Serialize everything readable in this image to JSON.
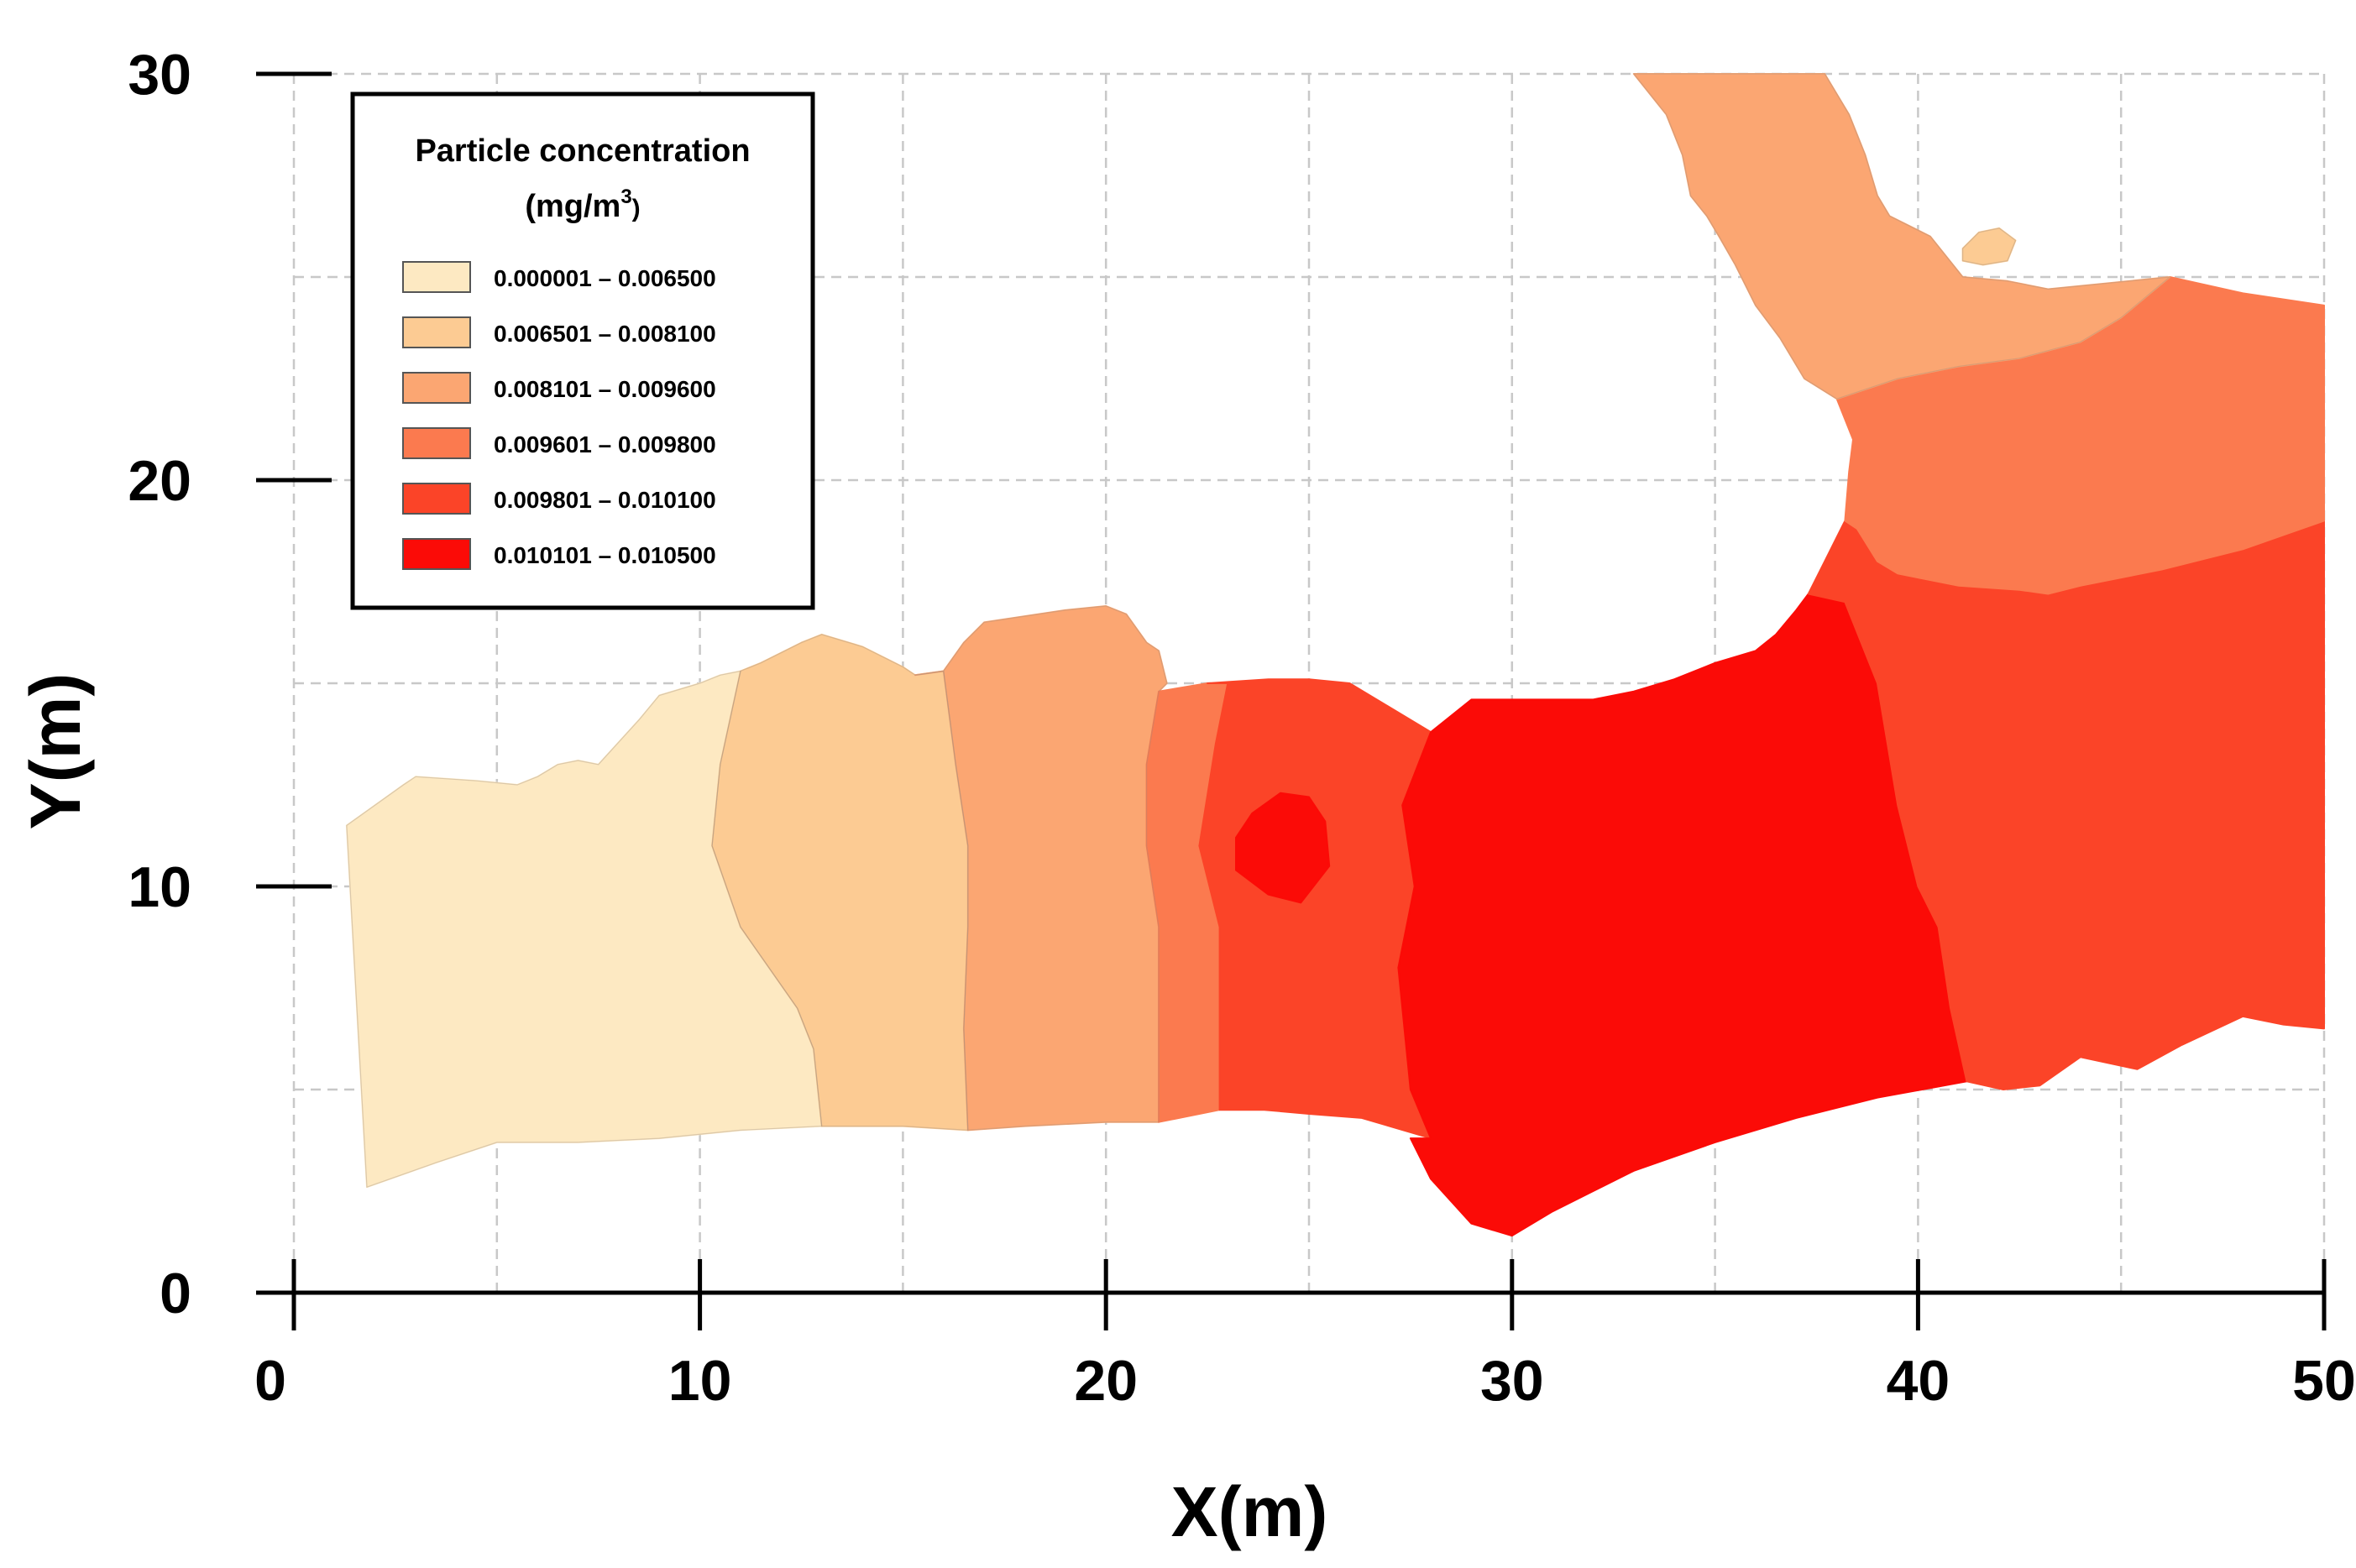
{
  "chart_data": {
    "type": "heatmap",
    "subtype": "filled-contour-map",
    "title": "",
    "xlabel": "X(m)",
    "ylabel": "Y(m)",
    "xlim": [
      0,
      50
    ],
    "ylim": [
      0,
      30
    ],
    "x_ticks": [
      0,
      10,
      20,
      30,
      40,
      50
    ],
    "y_ticks": [
      0,
      10,
      20,
      30
    ],
    "grid": true,
    "grid_step": 5,
    "legend": {
      "placement": "top-left",
      "title_line1": "Particle concentration",
      "title_unit": "(mg/m",
      "title_sup": "3",
      "title_close": ")",
      "entries": [
        {
          "label": "0.000001 – 0.006500",
          "color": "#fde9c2"
        },
        {
          "label": "0.006501 – 0.008100",
          "color": "#fccb93"
        },
        {
          "label": "0.008101 – 0.009600",
          "color": "#fba672"
        },
        {
          "label": "0.009601 – 0.009800",
          "color": "#fb7a4f"
        },
        {
          "label": "0.009801 – 0.010100",
          "color": "#fb4428"
        },
        {
          "label": "0.010101 – 0.010500",
          "color": "#fb0b07"
        }
      ]
    },
    "regions": [
      {
        "class": 0,
        "polygon": [
          [
            1.3,
            11.5
          ],
          [
            2.7,
            12.5
          ],
          [
            3,
            12.7
          ],
          [
            4.5,
            12.6
          ],
          [
            5.5,
            12.5
          ],
          [
            6,
            12.7
          ],
          [
            6.5,
            13
          ],
          [
            7,
            13.1
          ],
          [
            7.5,
            13
          ],
          [
            8.5,
            14.1
          ],
          [
            9,
            14.7
          ],
          [
            10,
            15
          ],
          [
            10.5,
            15.2
          ],
          [
            11,
            15.3
          ],
          [
            10.5,
            13
          ],
          [
            10.3,
            11
          ],
          [
            11,
            9
          ],
          [
            12.4,
            7
          ],
          [
            12.8,
            6
          ],
          [
            13,
            4.1
          ],
          [
            11,
            4
          ],
          [
            9,
            3.8
          ],
          [
            7,
            3.7
          ],
          [
            5,
            3.7
          ],
          [
            3.5,
            3.2
          ],
          [
            1.8,
            2.6
          ]
        ]
      },
      {
        "class": 1,
        "polygon": [
          [
            11,
            15.3
          ],
          [
            11.5,
            15.5
          ],
          [
            12.5,
            16
          ],
          [
            13,
            16.2
          ],
          [
            14,
            15.9
          ],
          [
            15,
            15.4
          ],
          [
            15.3,
            15.2
          ],
          [
            16,
            15.3
          ],
          [
            16.3,
            13
          ],
          [
            16.6,
            11
          ],
          [
            16.6,
            9
          ],
          [
            16.5,
            6.5
          ],
          [
            16.6,
            4
          ],
          [
            15,
            4.1
          ],
          [
            13,
            4.1
          ],
          [
            12.8,
            6
          ],
          [
            12.4,
            7
          ],
          [
            11,
            9
          ],
          [
            10.3,
            11
          ],
          [
            10.5,
            13
          ]
        ]
      },
      {
        "class": 2,
        "polygon": [
          [
            15.3,
            15.2
          ],
          [
            16,
            15.3
          ],
          [
            16.5,
            16
          ],
          [
            17,
            16.5
          ],
          [
            19,
            16.8
          ],
          [
            20,
            16.9
          ],
          [
            20.5,
            16.7
          ],
          [
            21,
            16
          ],
          [
            21.3,
            15.8
          ],
          [
            21.5,
            15
          ],
          [
            21.3,
            14.8
          ],
          [
            21,
            13
          ],
          [
            21,
            11
          ],
          [
            21.3,
            9
          ],
          [
            21.3,
            6.5
          ],
          [
            21.3,
            4.2
          ],
          [
            20,
            4.2
          ],
          [
            18,
            4.1
          ],
          [
            16.6,
            4
          ],
          [
            16.5,
            6.5
          ],
          [
            16.6,
            9
          ],
          [
            16.6,
            11
          ],
          [
            16.3,
            13
          ],
          [
            16,
            15.3
          ]
        ]
      },
      {
        "class": 3,
        "polygon": [
          [
            21.3,
            14.8
          ],
          [
            22.5,
            15
          ],
          [
            23,
            15
          ],
          [
            22.7,
            13.5
          ],
          [
            22.3,
            11
          ],
          [
            22.8,
            9
          ],
          [
            22.8,
            4.5
          ],
          [
            21.3,
            4.2
          ],
          [
            21.3,
            6.5
          ],
          [
            21.3,
            9
          ],
          [
            21,
            11
          ],
          [
            21,
            13
          ]
        ]
      },
      {
        "class": 4,
        "polygon": [
          [
            22.5,
            15
          ],
          [
            24,
            15.1
          ],
          [
            25,
            15.1
          ],
          [
            26,
            15
          ],
          [
            27,
            14.4
          ],
          [
            28,
            13.8
          ],
          [
            27.3,
            12
          ],
          [
            27.6,
            10
          ],
          [
            27.2,
            8
          ],
          [
            27.5,
            5
          ],
          [
            28,
            3.8
          ],
          [
            26.3,
            4.3
          ],
          [
            25,
            4.4
          ],
          [
            23.9,
            4.5
          ],
          [
            22.8,
            4.5
          ],
          [
            22.8,
            9
          ],
          [
            22.3,
            11
          ],
          [
            22.7,
            13.5
          ],
          [
            23,
            15
          ]
        ]
      },
      {
        "class": 5,
        "polygon": [
          [
            23.2,
            11.2
          ],
          [
            23.6,
            11.8
          ],
          [
            24.3,
            12.3
          ],
          [
            25,
            12.2
          ],
          [
            25.4,
            11.6
          ],
          [
            25.5,
            10.5
          ],
          [
            24.8,
            9.6
          ],
          [
            24,
            9.8
          ],
          [
            23.2,
            10.4
          ]
        ]
      },
      {
        "class": 5,
        "polygon": [
          [
            28,
            13.8
          ],
          [
            29,
            14.6
          ],
          [
            30,
            14.6
          ],
          [
            31,
            14.6
          ],
          [
            32,
            14.6
          ],
          [
            33,
            14.8
          ],
          [
            34,
            15.1
          ],
          [
            35,
            15.5
          ],
          [
            36,
            15.8
          ],
          [
            36.5,
            16.2
          ],
          [
            37,
            16.8
          ],
          [
            37.3,
            17.2
          ],
          [
            38.2,
            17
          ],
          [
            38.6,
            16
          ],
          [
            39,
            15
          ],
          [
            39.5,
            12
          ],
          [
            40,
            10
          ],
          [
            40.5,
            9
          ],
          [
            40.8,
            7
          ],
          [
            41.2,
            5.2
          ],
          [
            39,
            4.8
          ],
          [
            37,
            4.3
          ],
          [
            35,
            3.7
          ],
          [
            33,
            3
          ],
          [
            32,
            2.5
          ],
          [
            31,
            2
          ],
          [
            30,
            1.4
          ],
          [
            29,
            1.7
          ],
          [
            28,
            2.8
          ],
          [
            27.5,
            3.8
          ],
          [
            28,
            3.8
          ],
          [
            27.5,
            5
          ],
          [
            27.2,
            8
          ],
          [
            27.6,
            10
          ],
          [
            27.3,
            12
          ]
        ]
      },
      {
        "class": 4,
        "polygon": [
          [
            37.3,
            17.2
          ],
          [
            37.7,
            18
          ],
          [
            38.2,
            19
          ],
          [
            38.5,
            18.8
          ],
          [
            39,
            18
          ],
          [
            39.5,
            17.7
          ],
          [
            40,
            17.6
          ],
          [
            41,
            17.4
          ],
          [
            42.5,
            17.3
          ],
          [
            43.2,
            17.2
          ],
          [
            44,
            17.4
          ],
          [
            46,
            17.8
          ],
          [
            48,
            18.3
          ],
          [
            50,
            19
          ],
          [
            50,
            6.5
          ],
          [
            49,
            6.6
          ],
          [
            48,
            6.8
          ],
          [
            46.5,
            6.1
          ],
          [
            45.4,
            5.5
          ],
          [
            44,
            5.8
          ],
          [
            43,
            5.1
          ],
          [
            42.1,
            5
          ],
          [
            41.2,
            5.2
          ],
          [
            40.8,
            7
          ],
          [
            40.5,
            9
          ],
          [
            40,
            10
          ],
          [
            39.5,
            12
          ],
          [
            39,
            15
          ],
          [
            38.6,
            16
          ],
          [
            38.2,
            17
          ]
        ]
      },
      {
        "class": 3,
        "polygon": [
          [
            38.2,
            19
          ],
          [
            38.3,
            20.2
          ],
          [
            38.4,
            21
          ],
          [
            38,
            22
          ],
          [
            39.5,
            22.5
          ],
          [
            41,
            22.8
          ],
          [
            42.5,
            23
          ],
          [
            44,
            23.4
          ],
          [
            45,
            24
          ],
          [
            46.2,
            25
          ],
          [
            48,
            24.6
          ],
          [
            50,
            24.3
          ],
          [
            50,
            19
          ],
          [
            48,
            18.3
          ],
          [
            46,
            17.8
          ],
          [
            44,
            17.4
          ],
          [
            43.2,
            17.2
          ],
          [
            42.5,
            17.3
          ],
          [
            41,
            17.4
          ],
          [
            40,
            17.6
          ],
          [
            39.5,
            17.7
          ],
          [
            39,
            18
          ],
          [
            38.5,
            18.8
          ]
        ]
      },
      {
        "class": 2,
        "polygon": [
          [
            33,
            30
          ],
          [
            34.5,
            30
          ],
          [
            36.6,
            30
          ],
          [
            37.7,
            30
          ],
          [
            38.3,
            29
          ],
          [
            38.7,
            28
          ],
          [
            39,
            27
          ],
          [
            39.3,
            26.5
          ],
          [
            40.3,
            26
          ],
          [
            41.1,
            25
          ],
          [
            42.2,
            24.9
          ],
          [
            43.2,
            24.7
          ],
          [
            46.2,
            25
          ],
          [
            45,
            24
          ],
          [
            44,
            23.4
          ],
          [
            42.5,
            23
          ],
          [
            41,
            22.8
          ],
          [
            39.5,
            22.5
          ],
          [
            38,
            22
          ],
          [
            37.2,
            22.5
          ],
          [
            36.6,
            23.5
          ],
          [
            36,
            24.3
          ],
          [
            35.5,
            25.3
          ],
          [
            35.1,
            26
          ],
          [
            34.8,
            26.5
          ],
          [
            34.4,
            27
          ],
          [
            34.2,
            28
          ],
          [
            33.8,
            29
          ]
        ]
      },
      {
        "class": 1,
        "polygon": [
          [
            41.1,
            25.7
          ],
          [
            41.5,
            26.1
          ],
          [
            42,
            26.2
          ],
          [
            42.4,
            25.9
          ],
          [
            42.2,
            25.4
          ],
          [
            41.6,
            25.3
          ],
          [
            41.1,
            25.4
          ]
        ]
      }
    ]
  }
}
